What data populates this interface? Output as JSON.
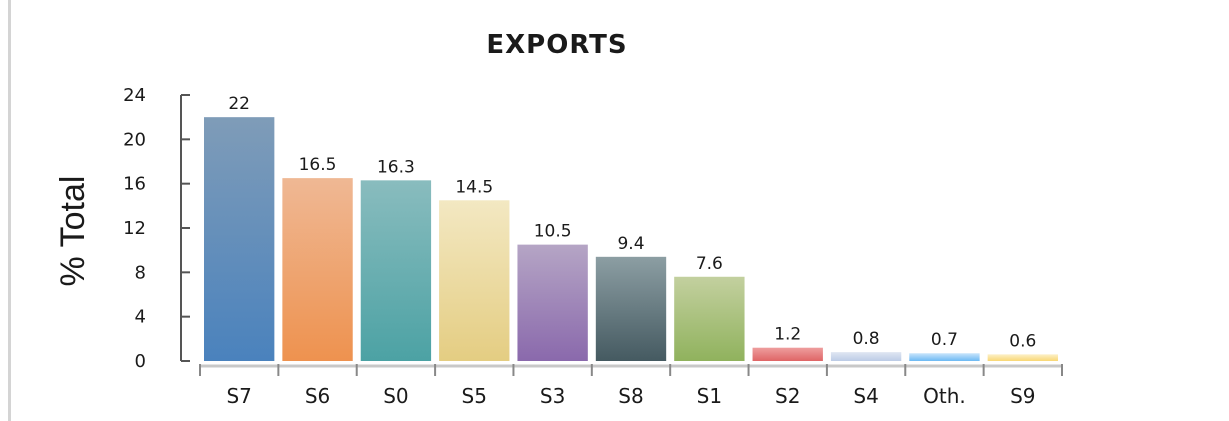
{
  "chart_data": {
    "type": "bar",
    "title": "EXPORTS",
    "ylabel": "% Total",
    "xlabel": "",
    "ylim": [
      0,
      24
    ],
    "yticks": [
      "0",
      "4",
      "8",
      "12",
      "16",
      "20",
      "24"
    ],
    "grid": false,
    "categories": [
      "S7",
      "S6",
      "S0",
      "S5",
      "S3",
      "S8",
      "S1",
      "S2",
      "S4",
      "Oth.",
      "S9"
    ],
    "values": [
      22,
      16.5,
      16.3,
      14.5,
      10.5,
      9.4,
      7.6,
      1.2,
      0.8,
      0.7,
      0.6
    ],
    "value_labels": [
      "22",
      "16.5",
      "16.3",
      "14.5",
      "10.5",
      "9.4",
      "7.6",
      "1.2",
      "0.8",
      "0.7",
      "0.6"
    ],
    "colors": [
      [
        "#7f9cb8",
        "#4a82bd"
      ],
      [
        "#efb894",
        "#ee924f"
      ],
      [
        "#89bcbe",
        "#4ca2a4"
      ],
      [
        "#f3e8c2",
        "#e4cd82"
      ],
      [
        "#b5a5c5",
        "#8a69ac"
      ],
      [
        "#8c9ea3",
        "#455a61"
      ],
      [
        "#c3d09f",
        "#90b25d"
      ],
      [
        "#ee9e9e",
        "#df6566"
      ],
      [
        "#dfe6f2",
        "#bccbe6"
      ],
      [
        "#c9e5fb",
        "#6cb9f4"
      ],
      [
        "#fcf0c8",
        "#f9d774"
      ]
    ]
  }
}
